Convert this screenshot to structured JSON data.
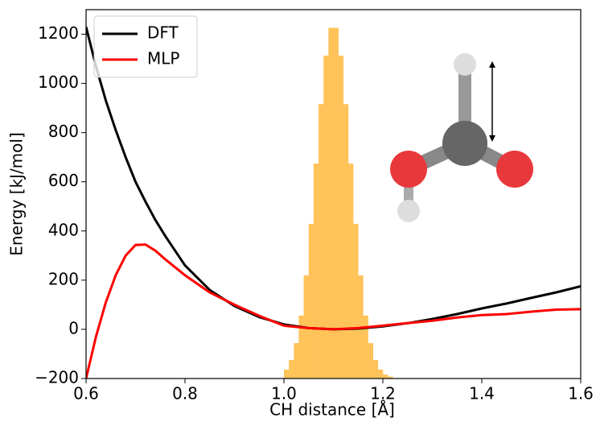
{
  "chart_data": {
    "type": "line",
    "x_label": "CH distance [Å]",
    "y_label": "Energy [kJ/mol]",
    "x": [
      0.6,
      0.62,
      0.64,
      0.66,
      0.68,
      0.7,
      0.72,
      0.74,
      0.76,
      0.8,
      0.85,
      0.9,
      0.95,
      1.0,
      1.05,
      1.1,
      1.15,
      1.2,
      1.25,
      1.3,
      1.35,
      1.4,
      1.45,
      1.5,
      1.55,
      1.6
    ],
    "series": [
      {
        "name": "DFT",
        "color": "#000000",
        "values": [
          1230,
          1070,
          930,
          810,
          700,
          600,
          520,
          445,
          380,
          260,
          160,
          95,
          50,
          20,
          5,
          0,
          3,
          12,
          25,
          42,
          62,
          85,
          105,
          128,
          150,
          175
        ]
      },
      {
        "name": "MLP",
        "color": "#ff0000",
        "values": [
          -200,
          -30,
          110,
          220,
          300,
          343,
          345,
          320,
          285,
          220,
          150,
          100,
          55,
          15,
          5,
          0,
          5,
          15,
          25,
          35,
          48,
          58,
          62,
          72,
          80,
          82
        ]
      }
    ],
    "histogram": {
      "color": "#ffc35a",
      "bins": [
        1.0,
        1.01,
        1.02,
        1.03,
        1.04,
        1.05,
        1.06,
        1.07,
        1.08,
        1.09,
        1.1,
        1.11,
        1.12,
        1.13,
        1.14,
        1.15,
        1.16,
        1.17,
        1.18,
        1.19,
        1.2,
        1.21,
        1.22
      ],
      "values": [
        -164,
        -125,
        -56,
        56,
        219,
        429,
        674,
        916,
        1113,
        1226,
        1226,
        1113,
        916,
        674,
        429,
        219,
        56,
        -56,
        -125,
        -164,
        -184,
        -192
      ]
    },
    "xlim": [
      0.6,
      1.6
    ],
    "ylim": [
      -200,
      1300
    ],
    "xticks": [
      0.6,
      0.8,
      {
        "value": 1.0,
        "label": "1.0"
      },
      1.2,
      1.4,
      1.6
    ],
    "yticks": [
      {
        "value": -200,
        "label": "−200"
      },
      0,
      200,
      400,
      600,
      800,
      1000,
      1200
    ],
    "grid": false,
    "legend": "upper-left"
  }
}
